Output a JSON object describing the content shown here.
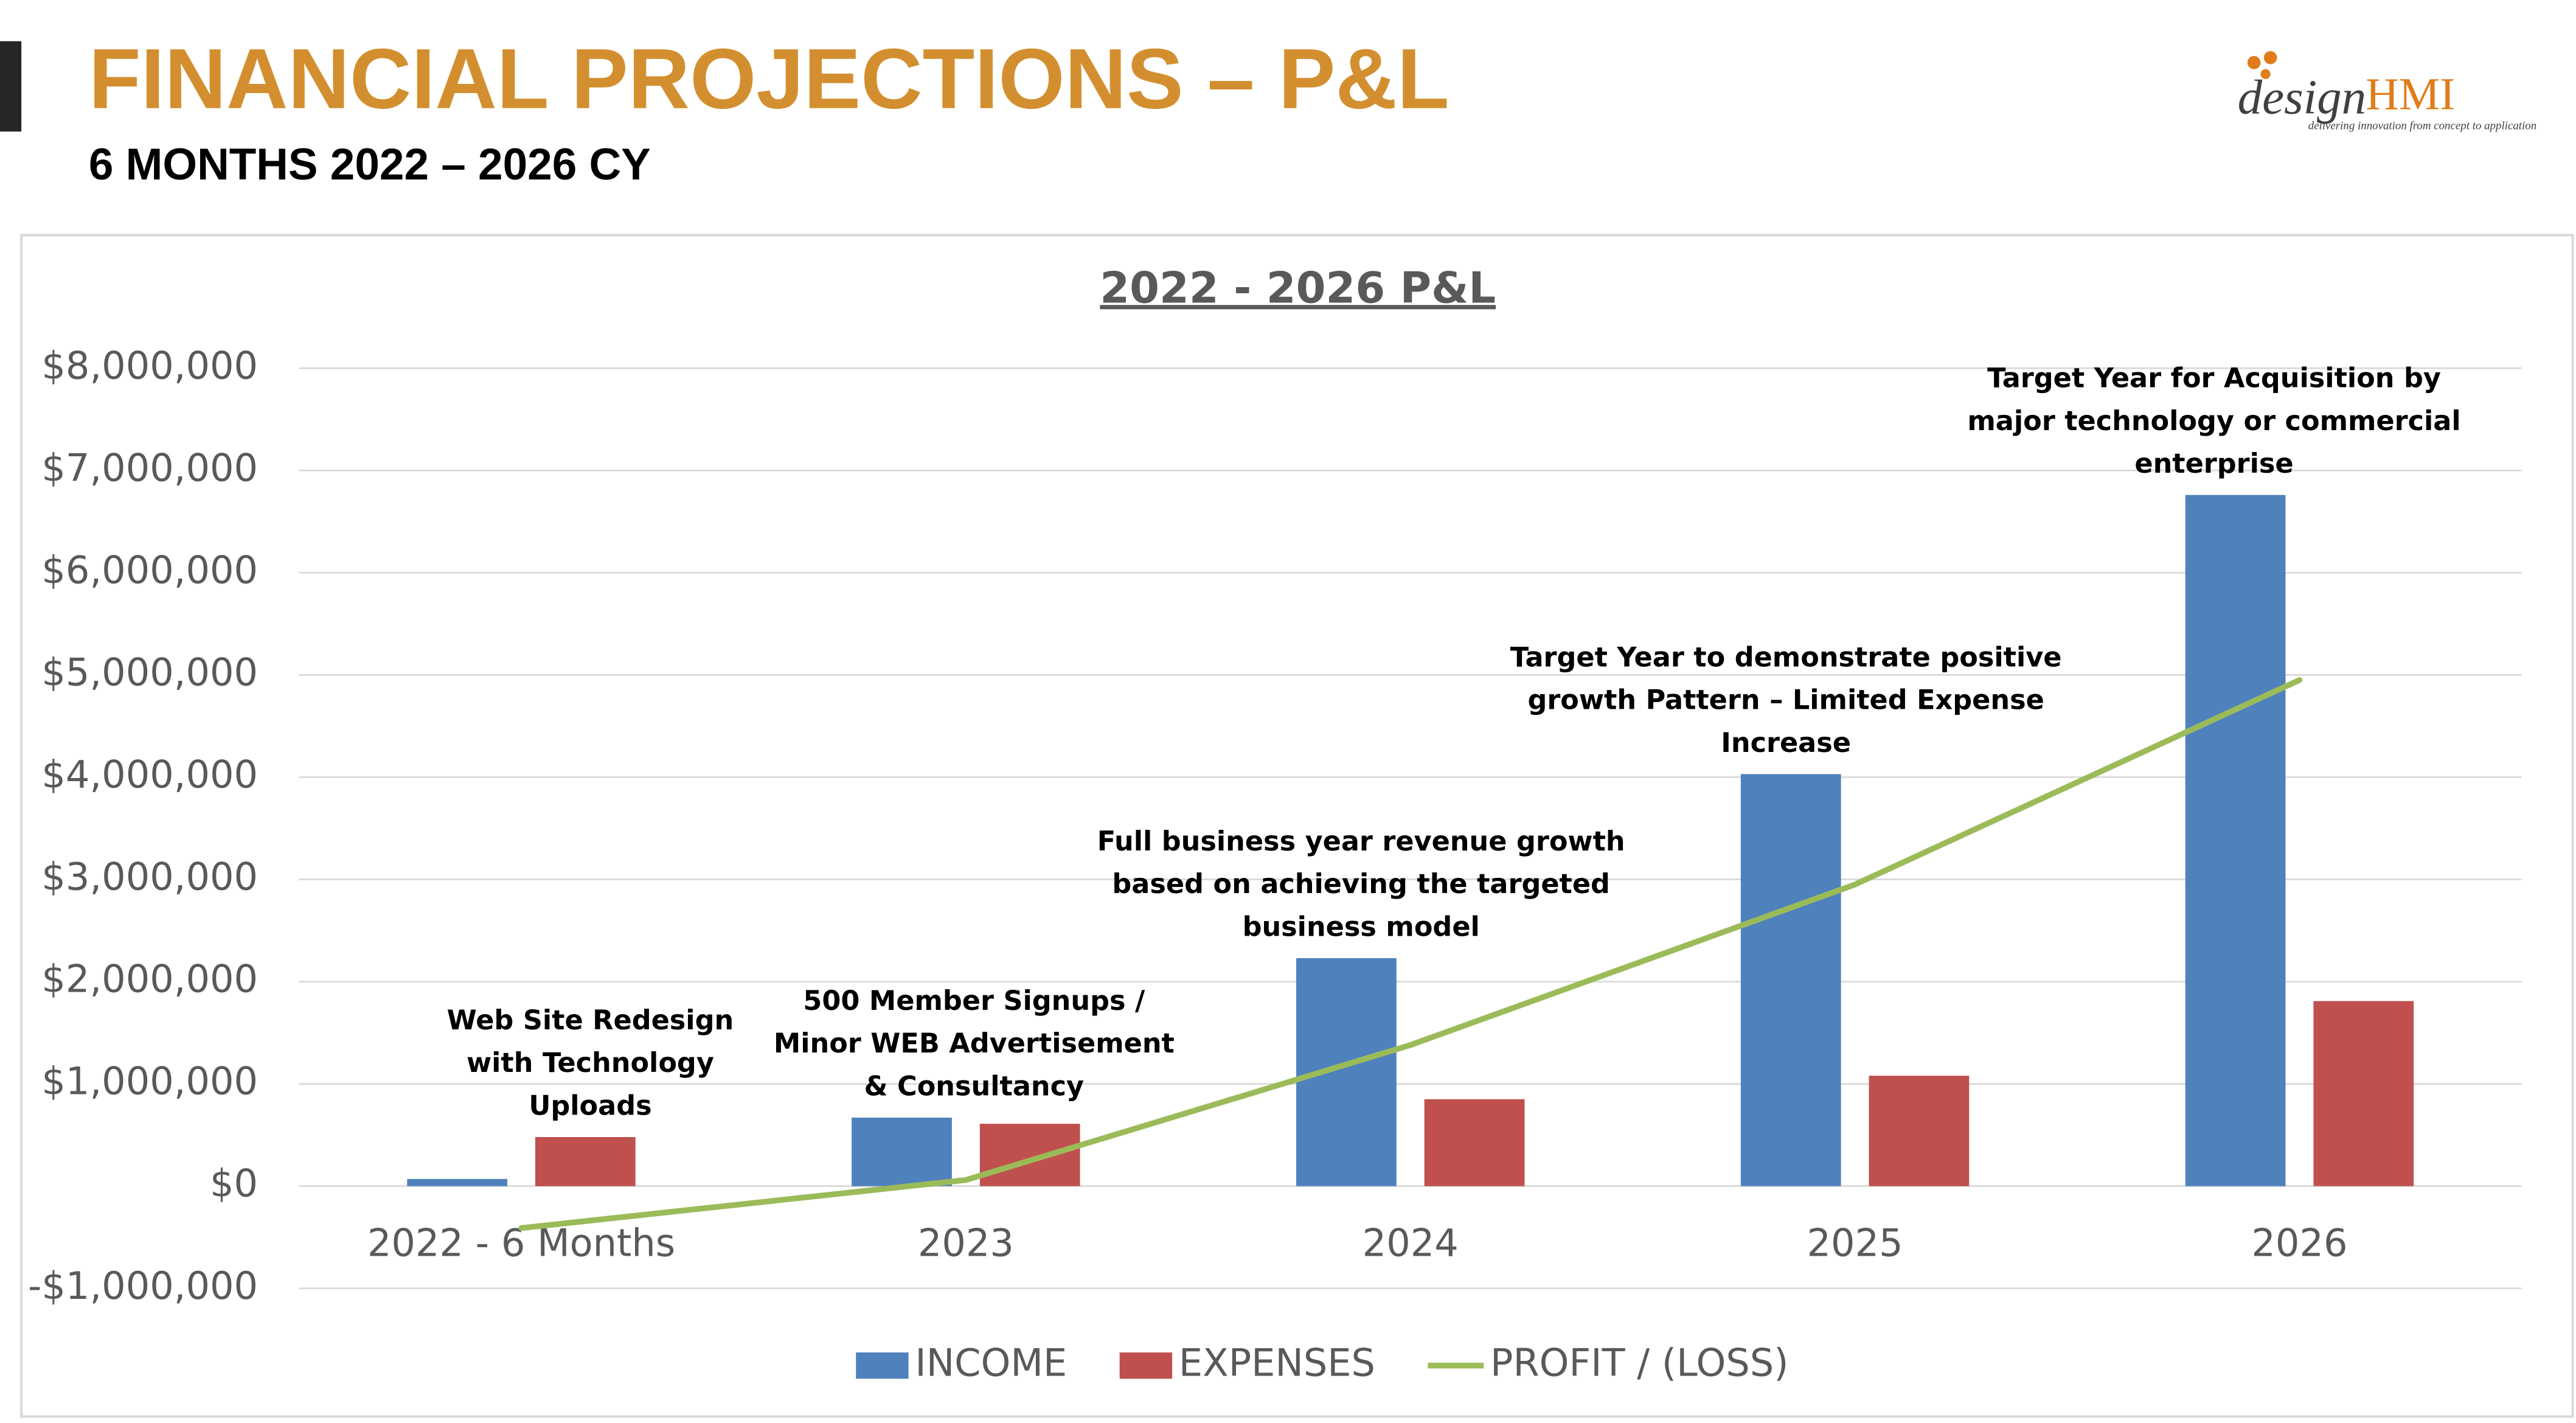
{
  "header": {
    "title": "FINANCIAL PROJECTIONS – P&L",
    "subtitle": "6 MONTHS 2022 – 2026 CY",
    "logo_left": "design",
    "logo_right": "HMI",
    "tagline": "delivering innovation from concept to application"
  },
  "chart_data": {
    "type": "bar",
    "title": "2022 - 2026 P&L",
    "categories": [
      "2022 - 6 Months",
      "2023",
      "2024",
      "2025",
      "2026"
    ],
    "series": [
      {
        "name": "INCOME",
        "type": "bar",
        "color": "#4f81bd",
        "values": [
          70000,
          670000,
          2230000,
          4030000,
          6760000
        ]
      },
      {
        "name": "EXPENSES",
        "type": "bar",
        "color": "#c0504d",
        "values": [
          480000,
          610000,
          850000,
          1080000,
          1810000
        ]
      },
      {
        "name": "PROFIT / (LOSS)",
        "type": "line",
        "color": "#9bbb59",
        "values": [
          -410000,
          60000,
          1380000,
          2950000,
          4950000
        ]
      }
    ],
    "ylim": [
      -1000000,
      8000000
    ],
    "yticks": [
      {
        "value": -1000000,
        "label": "-$1,000,000"
      },
      {
        "value": 0,
        "label": "$0"
      },
      {
        "value": 1000000,
        "label": "$1,000,000"
      },
      {
        "value": 2000000,
        "label": "$2,000,000"
      },
      {
        "value": 3000000,
        "label": "$3,000,000"
      },
      {
        "value": 4000000,
        "label": "$4,000,000"
      },
      {
        "value": 5000000,
        "label": "$5,000,000"
      },
      {
        "value": 6000000,
        "label": "$6,000,000"
      },
      {
        "value": 7000000,
        "label": "$7,000,000"
      },
      {
        "value": 8000000,
        "label": "$8,000,000"
      }
    ],
    "grid": true,
    "legend": "bottom",
    "annotations": [
      [
        "Web Site Redesign",
        "with Technology",
        "Uploads"
      ],
      [
        "500 Member Signups /",
        "Minor WEB Advertisement",
        "& Consultancy"
      ],
      [
        "Full business year revenue growth",
        "based on achieving the targeted",
        "business model"
      ],
      [
        "Target Year to demonstrate positive",
        "growth Pattern – Limited Expense",
        "Increase"
      ],
      [
        "Target Year for Acquisition by",
        "major technology or commercial",
        "enterprise"
      ]
    ]
  }
}
